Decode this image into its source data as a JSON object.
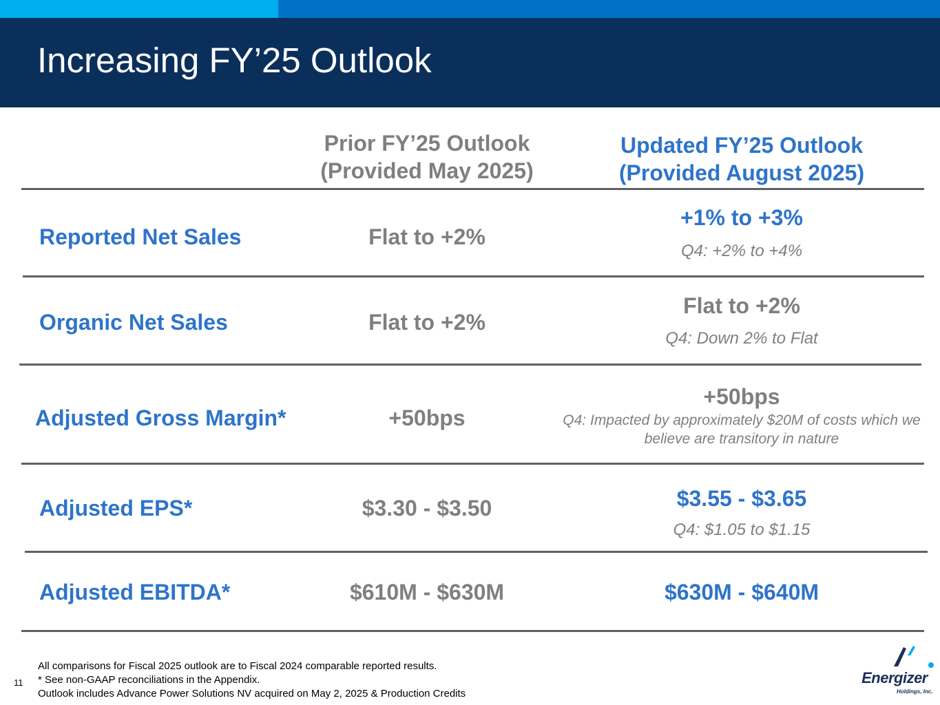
{
  "header": {
    "title": "Increasing FY’25 Outlook",
    "colors": {
      "light_bar": "#00adef",
      "dark_bar": "#0072c6",
      "band": "#0b2f5b"
    }
  },
  "columns": {
    "prior": {
      "line1": "Prior FY’25 Outlook",
      "line2": "(Provided May 2025)"
    },
    "updated": {
      "line1": "Updated FY’25 Outlook",
      "line2": "(Provided August 2025)"
    }
  },
  "rows": [
    {
      "label": "Reported Net Sales",
      "prior": "Flat to +2%",
      "updated": "+1% to +3%",
      "updated_note": "Q4: +2% to +4%"
    },
    {
      "label": "Organic Net Sales",
      "prior": "Flat to +2%",
      "updated": "Flat to +2%",
      "updated_note": "Q4: Down 2% to Flat"
    },
    {
      "label": "Adjusted Gross Margin*",
      "prior": "+50bps",
      "updated": "+50bps",
      "updated_note_line1": "Q4: Impacted by approximately $20M of costs which we",
      "updated_note_line2": "believe are transitory in nature"
    },
    {
      "label": "Adjusted EPS*",
      "prior": "$3.30 - $3.50",
      "updated": "$3.55 - $3.65",
      "updated_note": "Q4: $1.05 to $1.15"
    },
    {
      "label": "Adjusted EBITDA*",
      "prior": "$610M - $630M",
      "updated": "$630M - $640M"
    }
  ],
  "footnotes": {
    "line1": "All comparisons for Fiscal 2025 outlook are to Fiscal 2024 comparable reported results.",
    "line2": "* See non-GAAP reconciliations in the Appendix.",
    "line3": "Outlook includes Advance Power Solutions NV acquired on May 2, 2025 & Production Credits"
  },
  "page_number": "11",
  "logo": {
    "name": "Energizer",
    "subtitle": "Holdings, Inc.",
    "icon": "energizer-logo-icon"
  }
}
